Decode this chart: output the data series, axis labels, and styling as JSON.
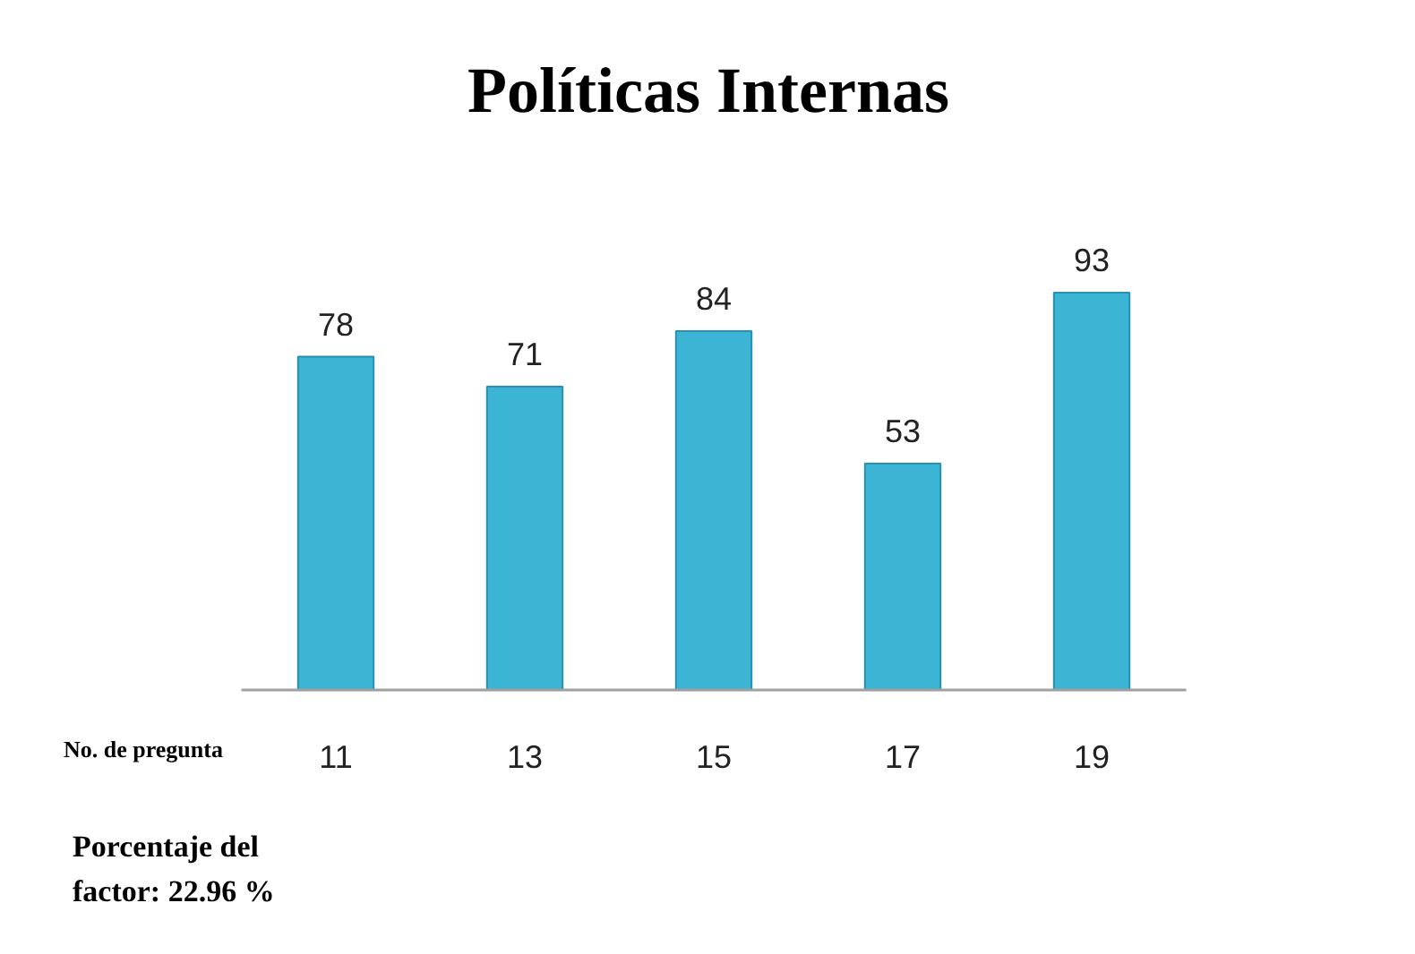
{
  "chart_data": {
    "type": "bar",
    "title": "Políticas Internas",
    "xlabel": "No. de pregunta",
    "categories": [
      "11",
      "13",
      "15",
      "17",
      "19"
    ],
    "values": [
      78,
      71,
      84,
      53,
      93
    ],
    "color": "#3cb4d4",
    "data_labels": true,
    "grid": false,
    "annotations": [
      "Porcentaje del\nfactor: 22.96 %"
    ]
  }
}
